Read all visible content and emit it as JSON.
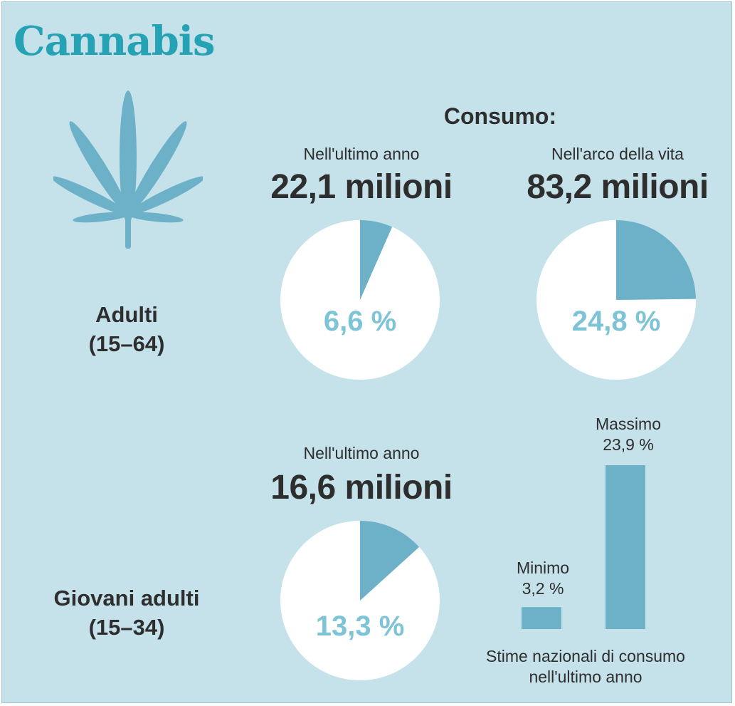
{
  "title": "Cannabis",
  "icon": "cannabis-leaf-icon",
  "colors": {
    "background": "#c5e2ea",
    "title": "#25a2b3",
    "slice": "#6db1c8",
    "leaf": "#6db1c8",
    "pie_base": "#ffffff",
    "percent_text": "#7ec4d7",
    "text": "#2e2e2e"
  },
  "consumo_label": "Consumo:",
  "groups": {
    "adults": "Adulti",
    "adults_age": "(15–64)",
    "young": "Giovani adulti",
    "young_age": "(15–34)"
  },
  "adults_last_year": {
    "label": "Nell'ultimo anno",
    "total": "22,1 milioni",
    "percent_label": "6,6 %"
  },
  "adults_lifetime": {
    "label": "Nell'arco della vita",
    "total": "83,2 milioni",
    "percent_label": "24,8 %"
  },
  "young_last_year": {
    "label": "Nell'ultimo anno",
    "total": "16,6 milioni",
    "percent_label": "13,3 %"
  },
  "range": {
    "min_label": "Minimo",
    "min_value_label": "3,2 %",
    "max_label": "Massimo",
    "max_value_label": "23,9 %",
    "caption_line1": "Stime nazionali di consumo",
    "caption_line2": "nell'ultimo anno"
  },
  "chart_data": [
    {
      "type": "pie",
      "title": "Nell'ultimo anno",
      "values": [
        6.6
      ],
      "unit": "%"
    },
    {
      "type": "pie",
      "title": "Nell'arco della vita",
      "values": [
        24.8
      ],
      "unit": "%"
    },
    {
      "type": "pie",
      "title": "Nell'ultimo anno",
      "values": [
        13.3
      ],
      "unit": "%"
    },
    {
      "type": "bar",
      "categories": [
        "Minimo",
        "Massimo"
      ],
      "values": [
        3.2,
        23.9
      ],
      "unit": "%",
      "xlabel": "Stime nazionali di consumo nell'ultimo anno"
    }
  ]
}
